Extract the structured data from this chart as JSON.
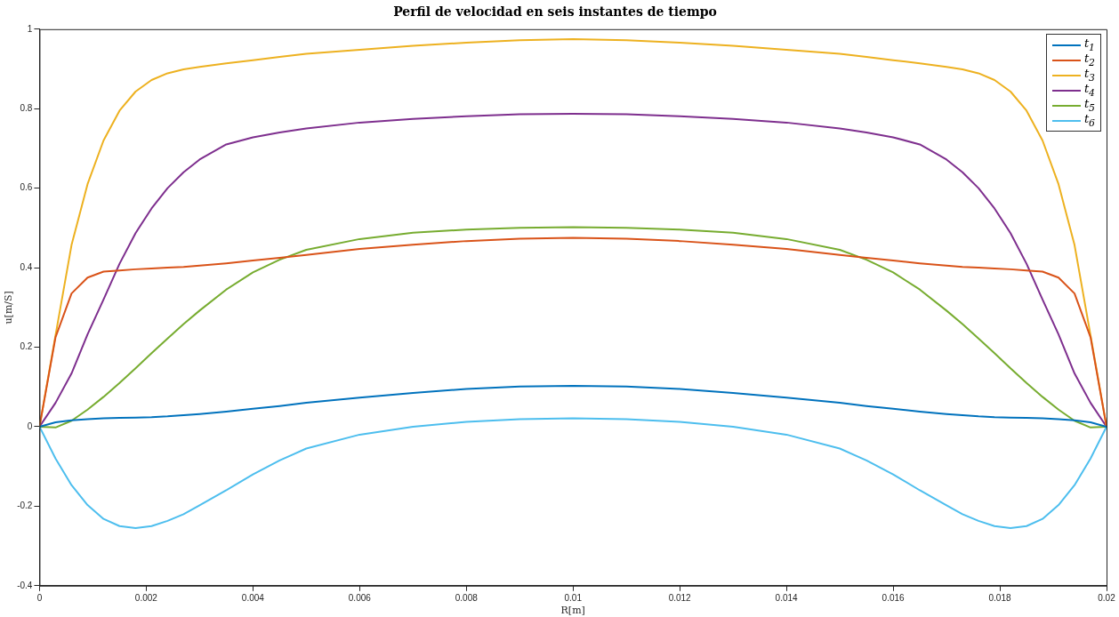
{
  "chart_data": {
    "type": "line",
    "title": "Perfil de velocidad en seis instantes de tiempo",
    "xlabel": "R[m]",
    "ylabel": "u[m/S]",
    "x": [
      0,
      0.0003,
      0.0006,
      0.0009,
      0.0012,
      0.0015,
      0.0018,
      0.0021,
      0.0024,
      0.0027,
      0.003,
      0.0035,
      0.004,
      0.0045,
      0.005,
      0.006,
      0.007,
      0.008,
      0.009,
      0.01,
      0.011,
      0.012,
      0.013,
      0.014,
      0.015,
      0.0155,
      0.016,
      0.0165,
      0.017,
      0.0173,
      0.0176,
      0.0179,
      0.0182,
      0.0185,
      0.0188,
      0.0191,
      0.0194,
      0.0197,
      0.02
    ],
    "series": [
      {
        "name": "t$_{1}$",
        "color": "#0072bd",
        "values": [
          0,
          0.011,
          0.016,
          0.019,
          0.021,
          0.022,
          0.023,
          0.024,
          0.026,
          0.029,
          0.032,
          0.038,
          0.045,
          0.052,
          0.06,
          0.073,
          0.085,
          0.095,
          0.101,
          0.103,
          0.101,
          0.095,
          0.085,
          0.073,
          0.06,
          0.052,
          0.045,
          0.038,
          0.032,
          0.029,
          0.026,
          0.024,
          0.023,
          0.022,
          0.021,
          0.019,
          0.016,
          0.011,
          0
        ]
      },
      {
        "name": "t$_{2}$",
        "color": "#d95319",
        "values": [
          0,
          0.225,
          0.335,
          0.375,
          0.39,
          0.393,
          0.396,
          0.398,
          0.4,
          0.402,
          0.405,
          0.411,
          0.418,
          0.425,
          0.432,
          0.447,
          0.458,
          0.467,
          0.473,
          0.475,
          0.473,
          0.467,
          0.458,
          0.447,
          0.432,
          0.425,
          0.418,
          0.411,
          0.405,
          0.402,
          0.4,
          0.398,
          0.396,
          0.393,
          0.39,
          0.375,
          0.335,
          0.225,
          0
        ]
      },
      {
        "name": "t$_{3}$",
        "color": "#edb120",
        "values": [
          0,
          0.23,
          0.457,
          0.61,
          0.72,
          0.795,
          0.843,
          0.872,
          0.889,
          0.899,
          0.905,
          0.914,
          0.922,
          0.93,
          0.938,
          0.948,
          0.958,
          0.966,
          0.972,
          0.975,
          0.972,
          0.966,
          0.958,
          0.948,
          0.938,
          0.93,
          0.922,
          0.914,
          0.905,
          0.899,
          0.889,
          0.872,
          0.843,
          0.795,
          0.72,
          0.61,
          0.457,
          0.23,
          0
        ]
      },
      {
        "name": "t$_{4}$",
        "color": "#7e2f8e",
        "values": [
          0,
          0.06,
          0.134,
          0.232,
          0.32,
          0.41,
          0.487,
          0.549,
          0.6,
          0.64,
          0.672,
          0.71,
          0.728,
          0.74,
          0.75,
          0.765,
          0.774,
          0.781,
          0.786,
          0.787,
          0.786,
          0.781,
          0.774,
          0.765,
          0.75,
          0.74,
          0.728,
          0.71,
          0.672,
          0.64,
          0.6,
          0.549,
          0.487,
          0.41,
          0.32,
          0.232,
          0.134,
          0.06,
          0
        ]
      },
      {
        "name": "t$_{5}$",
        "color": "#77ac30",
        "values": [
          0,
          -0.002,
          0.015,
          0.043,
          0.075,
          0.11,
          0.147,
          0.185,
          0.222,
          0.258,
          0.292,
          0.345,
          0.388,
          0.42,
          0.445,
          0.472,
          0.488,
          0.496,
          0.5,
          0.502,
          0.5,
          0.496,
          0.488,
          0.472,
          0.445,
          0.42,
          0.388,
          0.345,
          0.292,
          0.258,
          0.222,
          0.185,
          0.147,
          0.11,
          0.075,
          0.043,
          0.015,
          -0.002,
          0
        ]
      },
      {
        "name": "t$_{6}$",
        "color": "#4dbeee",
        "values": [
          0,
          -0.08,
          -0.147,
          -0.197,
          -0.232,
          -0.25,
          -0.255,
          -0.25,
          -0.237,
          -0.22,
          -0.198,
          -0.16,
          -0.12,
          -0.085,
          -0.055,
          -0.02,
          0,
          0.012,
          0.019,
          0.021,
          0.019,
          0.012,
          0,
          -0.02,
          -0.055,
          -0.085,
          -0.12,
          -0.16,
          -0.198,
          -0.22,
          -0.237,
          -0.25,
          -0.255,
          -0.25,
          -0.232,
          -0.197,
          -0.147,
          -0.08,
          0
        ]
      }
    ],
    "xlim": [
      0,
      0.02
    ],
    "xticks": [
      0,
      0.002,
      0.004,
      0.006,
      0.008,
      0.01,
      0.012,
      0.014,
      0.016,
      0.018,
      0.02
    ],
    "ylim": [
      -0.4,
      1
    ],
    "yticks": [
      -0.4,
      -0.2,
      0,
      0.2,
      0.4,
      0.6,
      0.8,
      1
    ],
    "grid": false,
    "legend": "top right",
    "marker": "none",
    "line_style": "solid"
  }
}
